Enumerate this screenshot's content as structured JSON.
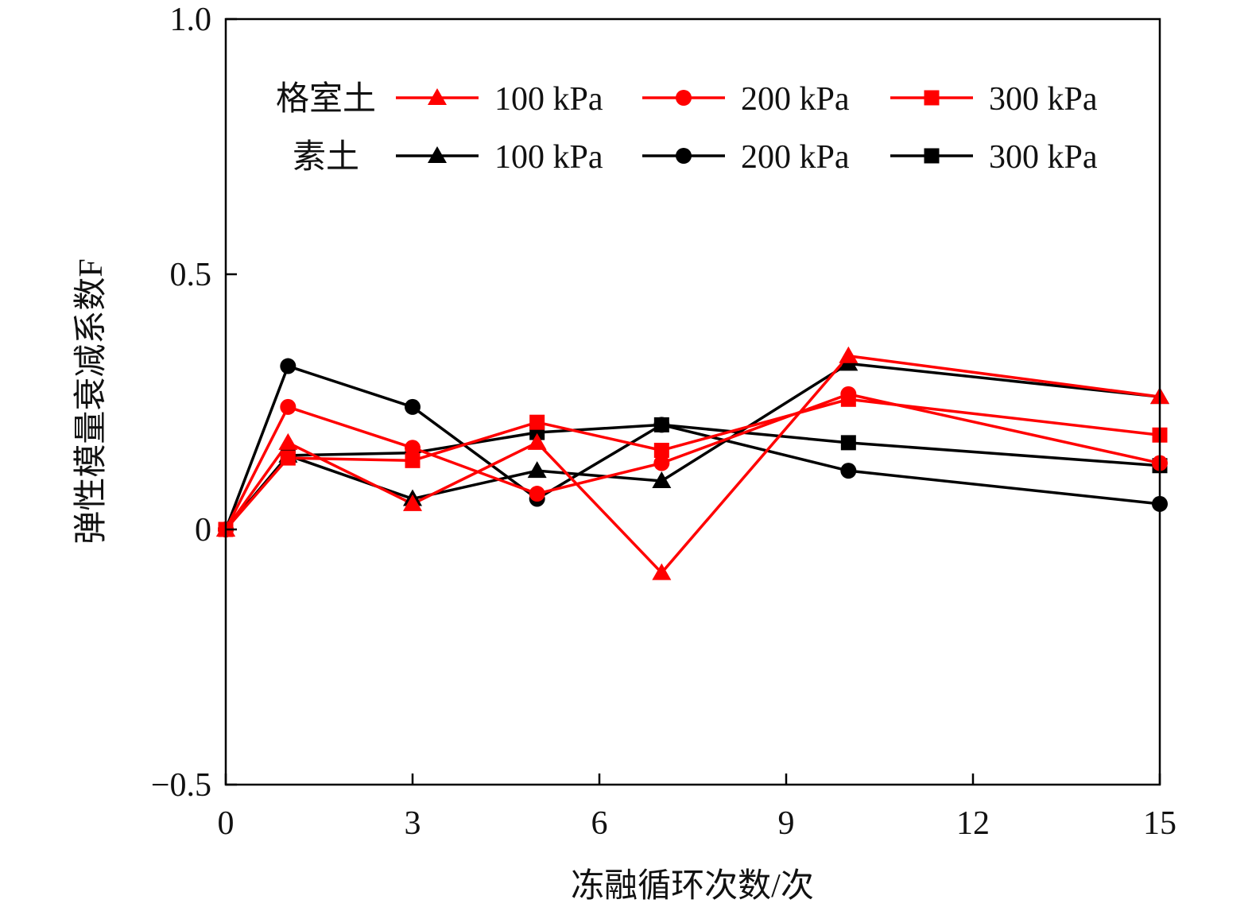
{
  "chart_data": {
    "type": "line",
    "xlabel": "冻融循环次数/次",
    "ylabel": "弹性模量衰减系数F",
    "xlim": [
      0,
      15
    ],
    "ylim": [
      -0.5,
      1.0
    ],
    "xticks": [
      0,
      3,
      6,
      9,
      12,
      15
    ],
    "yticks": [
      {
        "value": -0.5,
        "label": "−0.5"
      },
      {
        "value": 0,
        "label": "0"
      },
      {
        "value": 0.5,
        "label": "0.5"
      },
      {
        "value": 1.0,
        "label": "1.0"
      }
    ],
    "x": [
      0,
      1,
      3,
      5,
      7,
      10,
      15
    ],
    "legend": {
      "placement": "top",
      "groups": [
        {
          "label": "格室土",
          "color": "#ff0000"
        },
        {
          "label": "素土",
          "color": "#000000"
        }
      ]
    },
    "series": [
      {
        "group": "格室土",
        "name": "100 kPa",
        "marker": "triangle",
        "color": "#ff0000",
        "values": [
          0,
          0.17,
          0.05,
          0.17,
          -0.085,
          0.34,
          0.26
        ]
      },
      {
        "group": "格室土",
        "name": "200 kPa",
        "marker": "circle",
        "color": "#ff0000",
        "values": [
          0,
          0.24,
          0.16,
          0.07,
          0.13,
          0.265,
          0.13
        ]
      },
      {
        "group": "格室土",
        "name": "300 kPa",
        "marker": "square",
        "color": "#ff0000",
        "values": [
          0,
          0.14,
          0.135,
          0.21,
          0.155,
          0.255,
          0.185
        ]
      },
      {
        "group": "素土",
        "name": "100 kPa",
        "marker": "triangle",
        "color": "#000000",
        "values": [
          0,
          0.145,
          0.06,
          0.115,
          0.095,
          0.325,
          0.26
        ]
      },
      {
        "group": "素土",
        "name": "200 kPa",
        "marker": "circle",
        "color": "#000000",
        "values": [
          0,
          0.32,
          0.24,
          0.06,
          0.205,
          0.115,
          0.05
        ]
      },
      {
        "group": "素土",
        "name": "300 kPa",
        "marker": "square",
        "color": "#000000",
        "values": [
          0,
          0.145,
          0.15,
          0.19,
          0.205,
          0.17,
          0.125
        ]
      }
    ]
  }
}
